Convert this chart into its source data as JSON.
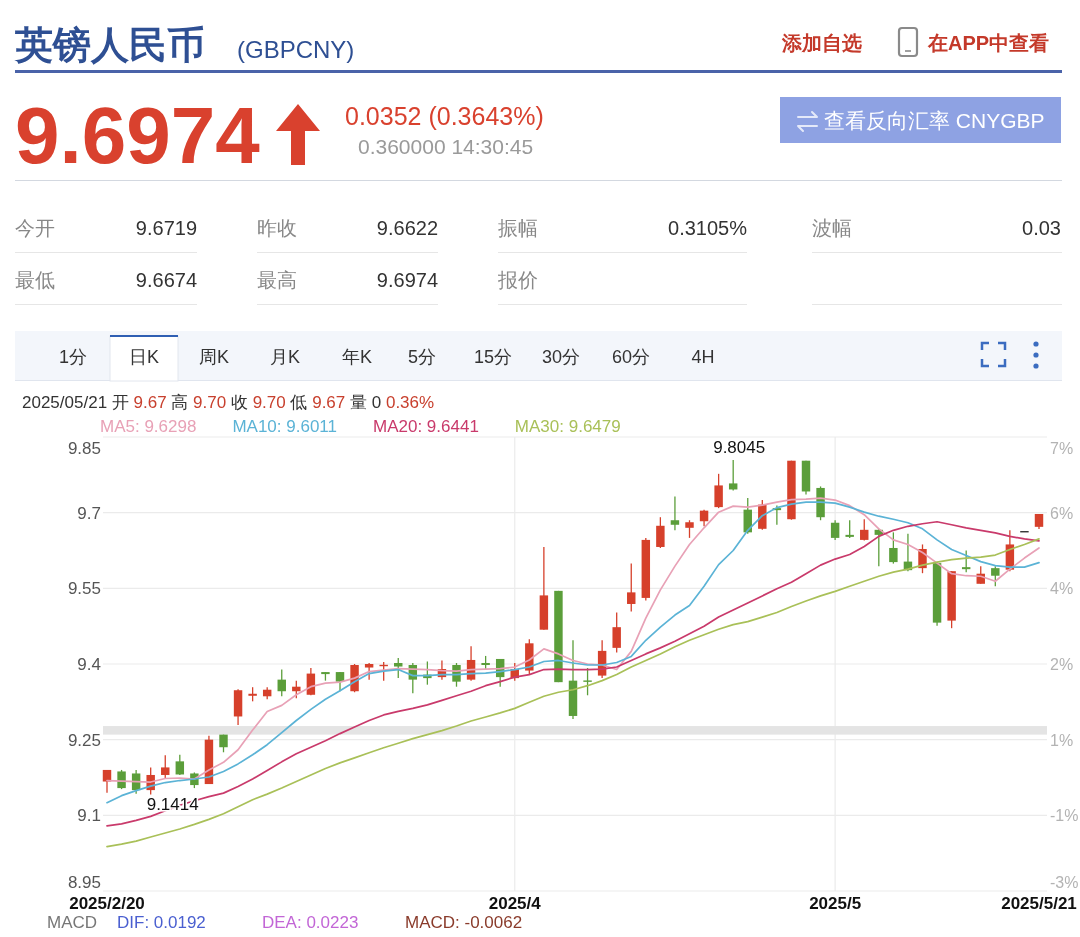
{
  "chart_data": {
    "type": "candlestick",
    "title": "英镑人民币",
    "subtitle": "(GBPCNY)",
    "categories": [
      "2025/2/20",
      null,
      null,
      null,
      null,
      null,
      null,
      null,
      null,
      null,
      null,
      null,
      null,
      null,
      null,
      null,
      null,
      null,
      null,
      null,
      null,
      null,
      null,
      null,
      null,
      null,
      null,
      null,
      "2025/4",
      null,
      null,
      null,
      null,
      null,
      null,
      null,
      null,
      null,
      null,
      null,
      null,
      null,
      null,
      null,
      null,
      null,
      null,
      null,
      null,
      null,
      "2025/5",
      null,
      null,
      null,
      null,
      null,
      null,
      null,
      null,
      null,
      null,
      null,
      null,
      null,
      "2025/5/21"
    ],
    "ohlc": [
      [
        9.167,
        9.19,
        9.145,
        9.19
      ],
      [
        9.187,
        9.19,
        9.152,
        9.154
      ],
      [
        9.183,
        9.19,
        9.143,
        9.15
      ],
      [
        9.15,
        9.195,
        9.1414,
        9.18
      ],
      [
        9.18,
        9.219,
        9.174,
        9.195
      ],
      [
        9.207,
        9.22,
        9.18,
        9.181
      ],
      [
        9.183,
        9.185,
        9.154,
        9.16
      ],
      [
        9.162,
        9.258,
        9.162,
        9.25
      ],
      [
        9.26,
        9.26,
        9.225,
        9.235
      ],
      [
        9.296,
        9.35,
        9.279,
        9.348
      ],
      [
        9.337,
        9.354,
        9.326,
        9.341
      ],
      [
        9.336,
        9.354,
        9.33,
        9.349
      ],
      [
        9.369,
        9.389,
        9.336,
        9.346
      ],
      [
        9.346,
        9.367,
        9.332,
        9.355
      ],
      [
        9.339,
        9.392,
        9.338,
        9.381
      ],
      [
        9.384,
        9.384,
        9.367,
        9.38
      ],
      [
        9.384,
        9.384,
        9.346,
        9.365
      ],
      [
        9.346,
        9.4,
        9.344,
        9.398
      ],
      [
        9.393,
        9.402,
        9.369,
        9.4
      ],
      [
        9.396,
        9.404,
        9.367,
        9.398
      ],
      [
        9.402,
        9.412,
        9.372,
        9.395
      ],
      [
        9.398,
        9.402,
        9.342,
        9.369
      ],
      [
        9.379,
        9.405,
        9.359,
        9.372
      ],
      [
        9.374,
        9.407,
        9.369,
        9.39
      ],
      [
        9.398,
        9.402,
        9.355,
        9.365
      ],
      [
        9.369,
        9.435,
        9.367,
        9.408
      ],
      [
        9.402,
        9.416,
        9.39,
        9.398
      ],
      [
        9.41,
        9.41,
        9.355,
        9.374
      ],
      [
        9.372,
        9.402,
        9.367,
        9.39
      ],
      [
        9.387,
        9.449,
        9.379,
        9.441
      ],
      [
        9.468,
        9.632,
        9.468,
        9.536
      ],
      [
        9.545,
        9.545,
        9.364,
        9.364
      ],
      [
        9.367,
        9.447,
        9.291,
        9.297
      ],
      [
        9.367,
        9.392,
        9.338,
        9.365
      ],
      [
        9.377,
        9.447,
        9.372,
        9.426
      ],
      [
        9.432,
        9.502,
        9.423,
        9.473
      ],
      [
        9.519,
        9.599,
        9.504,
        9.542
      ],
      [
        9.531,
        9.65,
        9.526,
        9.646
      ],
      [
        9.632,
        9.691,
        9.63,
        9.674
      ],
      [
        9.685,
        9.732,
        9.665,
        9.676
      ],
      [
        9.67,
        9.685,
        9.65,
        9.681
      ],
      [
        9.683,
        9.706,
        9.673,
        9.704
      ],
      [
        9.711,
        9.777,
        9.709,
        9.754
      ],
      [
        9.758,
        9.8045,
        9.744,
        9.746
      ],
      [
        9.706,
        9.729,
        9.658,
        9.661
      ],
      [
        9.668,
        9.725,
        9.666,
        9.716
      ],
      [
        9.709,
        9.714,
        9.676,
        9.705
      ],
      [
        9.687,
        9.803,
        9.686,
        9.803
      ],
      [
        9.803,
        9.803,
        9.736,
        9.742
      ],
      [
        9.749,
        9.752,
        9.685,
        9.691
      ],
      [
        9.68,
        9.685,
        9.646,
        9.65
      ],
      [
        9.656,
        9.685,
        9.65,
        9.652
      ],
      [
        9.646,
        9.687,
        9.645,
        9.666
      ],
      [
        9.666,
        9.668,
        9.594,
        9.656
      ],
      [
        9.63,
        9.661,
        9.599,
        9.602
      ],
      [
        9.603,
        9.658,
        9.584,
        9.586
      ],
      [
        9.59,
        9.637,
        9.58,
        9.628
      ],
      [
        9.6,
        9.602,
        9.476,
        9.482
      ],
      [
        9.486,
        9.584,
        9.471,
        9.584
      ],
      [
        9.592,
        9.625,
        9.582,
        9.588
      ],
      [
        9.559,
        9.594,
        9.559,
        9.579
      ],
      [
        9.59,
        9.594,
        9.554,
        9.575
      ],
      [
        9.587,
        9.665,
        9.584,
        9.637
      ],
      [
        9.6622,
        9.6622,
        9.6622,
        9.6622
      ],
      [
        9.6719,
        9.6974,
        9.6674,
        9.6974
      ]
    ],
    "colors": [
      "#d6402b",
      "#5b9e3a",
      "#5b9e3a",
      "#d6402b",
      "#d6402b",
      "#5b9e3a",
      "#5b9e3a",
      "#d6402b",
      "#5b9e3a",
      "#d6402b",
      "#d6402b",
      "#d6402b",
      "#5b9e3a",
      "#d6402b",
      "#d6402b",
      "#5b9e3a",
      "#5b9e3a",
      "#d6402b",
      "#d6402b",
      "#d6402b",
      "#5b9e3a",
      "#5b9e3a",
      "#5b9e3a",
      "#d6402b",
      "#5b9e3a",
      "#d6402b",
      "#5b9e3a",
      "#5b9e3a",
      "#d6402b",
      "#d6402b",
      "#d6402b",
      "#5b9e3a",
      "#5b9e3a",
      "#5b9e3a",
      "#d6402b",
      "#d6402b",
      "#d6402b",
      "#d6402b",
      "#d6402b",
      "#5b9e3a",
      "#d6402b",
      "#d6402b",
      "#d6402b",
      "#5b9e3a",
      "#5b9e3a",
      "#d6402b",
      "#5b9e3a",
      "#d6402b",
      "#5b9e3a",
      "#5b9e3a",
      "#5b9e3a",
      "#5b9e3a",
      "#d6402b",
      "#5b9e3a",
      "#5b9e3a",
      "#5b9e3a",
      "#d6402b",
      "#5b9e3a",
      "#d6402b",
      "#5b9e3a",
      "#d6402b",
      "#5b9e3a",
      "#d6402b",
      "#333333",
      "#d6402b"
    ],
    "series": [
      {
        "type": "line",
        "name": "MA5: 9.6298",
        "color": "#e8a1b6",
        "values": [
          9.169,
          9.168,
          9.167,
          9.166,
          9.173,
          9.174,
          9.172,
          9.19,
          9.205,
          9.23,
          9.269,
          9.306,
          9.318,
          9.339,
          9.355,
          9.362,
          9.364,
          9.372,
          9.385,
          9.388,
          9.391,
          9.39,
          9.389,
          9.387,
          9.386,
          9.389,
          9.39,
          9.391,
          9.394,
          9.408,
          9.43,
          9.42,
          9.407,
          9.4,
          9.398,
          9.389,
          9.425,
          9.491,
          9.547,
          9.594,
          9.637,
          9.67,
          9.701,
          9.713,
          9.711,
          9.715,
          9.721,
          9.726,
          9.727,
          9.729,
          9.725,
          9.714,
          9.696,
          9.668,
          9.646,
          9.637,
          9.621,
          9.6,
          9.579,
          9.575,
          9.574,
          9.564,
          9.588,
          9.61,
          9.63
        ]
      },
      {
        "type": "line",
        "name": "MA10: 9.6011",
        "color": "#5bb3d6",
        "values": [
          9.125,
          9.139,
          9.149,
          9.158,
          9.165,
          9.169,
          9.172,
          9.176,
          9.187,
          9.202,
          9.22,
          9.24,
          9.264,
          9.288,
          9.31,
          9.33,
          9.347,
          9.365,
          9.381,
          9.386,
          9.389,
          9.377,
          9.377,
          9.379,
          9.379,
          9.381,
          9.382,
          9.385,
          9.389,
          9.394,
          9.405,
          9.407,
          9.402,
          9.398,
          9.398,
          9.403,
          9.415,
          9.447,
          9.473,
          9.497,
          9.516,
          9.554,
          9.597,
          9.625,
          9.665,
          9.694,
          9.71,
          9.717,
          9.721,
          9.721,
          9.719,
          9.711,
          9.701,
          9.693,
          9.687,
          9.68,
          9.668,
          9.646,
          9.627,
          9.615,
          9.603,
          9.595,
          9.592,
          9.592,
          9.601
        ]
      },
      {
        "type": "line",
        "name": "MA20: 9.6441",
        "color": "#c93a6b",
        "values": [
          9.079,
          9.083,
          9.09,
          9.098,
          9.109,
          9.12,
          9.129,
          9.137,
          9.144,
          9.157,
          9.172,
          9.189,
          9.206,
          9.222,
          9.235,
          9.248,
          9.262,
          9.275,
          9.288,
          9.299,
          9.306,
          9.312,
          9.319,
          9.328,
          9.337,
          9.346,
          9.357,
          9.365,
          9.374,
          9.379,
          9.389,
          9.39,
          9.389,
          9.389,
          9.39,
          9.394,
          9.407,
          9.42,
          9.432,
          9.445,
          9.46,
          9.475,
          9.493,
          9.507,
          9.521,
          9.535,
          9.549,
          9.562,
          9.579,
          9.596,
          9.608,
          9.617,
          9.633,
          9.653,
          9.665,
          9.673,
          9.678,
          9.682,
          9.676,
          9.67,
          9.665,
          9.66,
          9.653,
          9.648,
          9.644
        ]
      },
      {
        "type": "line",
        "name": "MA30: 9.6479",
        "color": "#a9c058",
        "values": [
          9.038,
          9.043,
          9.049,
          9.057,
          9.065,
          9.073,
          9.082,
          9.092,
          9.103,
          9.117,
          9.131,
          9.142,
          9.154,
          9.167,
          9.18,
          9.193,
          9.204,
          9.214,
          9.224,
          9.234,
          9.243,
          9.252,
          9.26,
          9.268,
          9.277,
          9.287,
          9.295,
          9.303,
          9.312,
          9.324,
          9.336,
          9.344,
          9.349,
          9.357,
          9.367,
          9.379,
          9.394,
          9.407,
          9.42,
          9.434,
          9.447,
          9.458,
          9.469,
          9.478,
          9.484,
          9.493,
          9.502,
          9.514,
          9.525,
          9.535,
          9.544,
          9.554,
          9.564,
          9.574,
          9.582,
          9.588,
          9.596,
          9.602,
          9.607,
          9.61,
          9.612,
          9.616,
          9.627,
          9.637,
          9.648
        ]
      }
    ],
    "ylim": [
      8.95,
      9.85
    ],
    "yticks": [
      8.95,
      9.1,
      9.25,
      9.4,
      9.55,
      9.7,
      9.85
    ],
    "y2lim": [
      -2.505,
      7.298
    ],
    "y2ticks": [
      {
        "value": -2.505,
        "label": "-3%"
      },
      {
        "value": -0.871,
        "label": "-1%"
      },
      {
        "value": 0.763,
        "label": "1%"
      },
      {
        "value": 2.397,
        "label": "2%"
      },
      {
        "value": 4.031,
        "label": "4%"
      },
      {
        "value": 5.664,
        "label": "6%"
      },
      {
        "value": 7.298,
        "label": "7%"
      }
    ],
    "grid": true,
    "legend": "top left",
    "bands": [
      {
        "axis": "y",
        "from": 9.26,
        "to": 9.277,
        "color": "#e4e4e4"
      }
    ],
    "annotations": [
      "添加自选",
      "在APP中查看",
      "9.6974",
      "0.0352 (0.3643%)",
      "0.360000 14:30:45",
      "查看反向汇率 CNYGBP",
      "今开",
      "9.6719",
      "昨收",
      "9.6622",
      "振幅",
      "0.3105%",
      "波幅",
      "0.03",
      "最低",
      "9.6674",
      "最高",
      "9.6974",
      "报价",
      "1分",
      "日K",
      "周K",
      "月K",
      "年K",
      "5分",
      "15分",
      "30分",
      "60分",
      "4H",
      "2025/05/21 开 9.67 高 9.70 收 9.70 低 9.67 量 0 0.36%",
      "MACD",
      "DIF: 0.0192",
      "DEA: 0.0223",
      "MACD: -0.0062",
      "9.8045",
      "9.1414"
    ]
  }
}
